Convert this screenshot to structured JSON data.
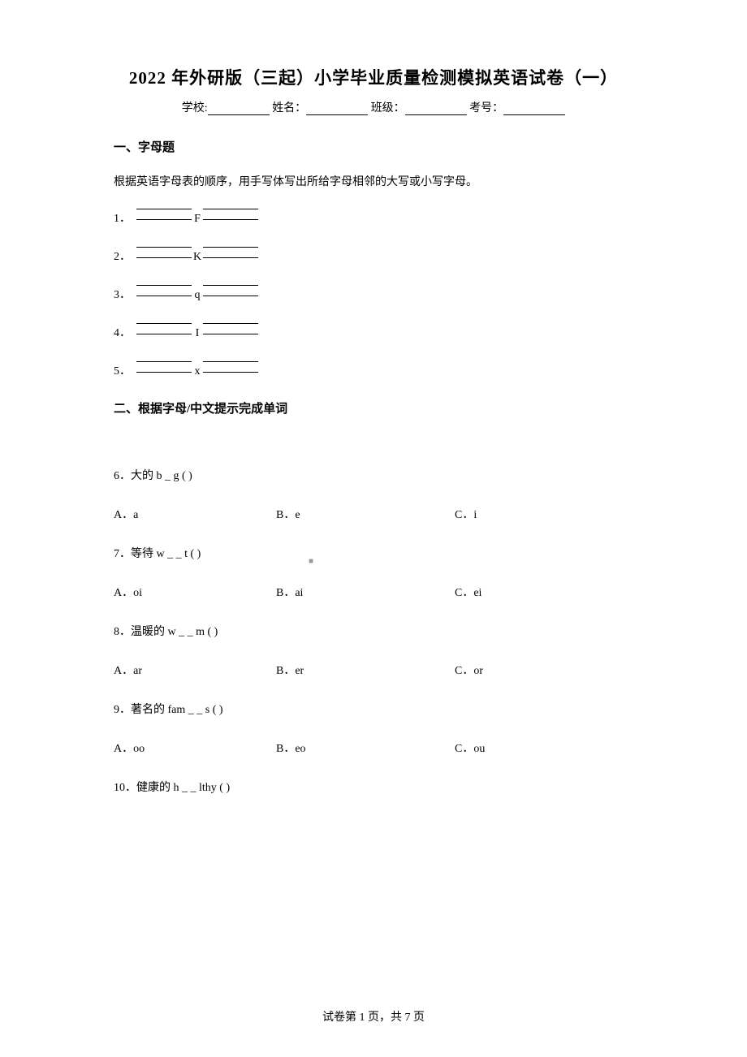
{
  "title": "2022 年外研版（三起）小学毕业质量检测模拟英语试卷（一）",
  "info": {
    "school_label": "学校:",
    "name_label": "姓名：",
    "class_label": "班级：",
    "exam_no_label": "考号："
  },
  "section1": {
    "header": "一、字母题",
    "instruction": "根据英语字母表的顺序，用手写体写出所给字母相邻的大写或小写字母。",
    "items": [
      {
        "num": "1．",
        "letter": "F"
      },
      {
        "num": "2．",
        "letter": "K"
      },
      {
        "num": "3．",
        "letter": "q"
      },
      {
        "num": "4．",
        "letter": "I"
      },
      {
        "num": "5．",
        "letter": "x"
      }
    ]
  },
  "section2": {
    "header": "二、根据字母/中文提示完成单词",
    "questions": [
      {
        "num": "6．",
        "text": "大的    b _ g (           )",
        "a": "A．a",
        "b": "B．e",
        "c": "C．i"
      },
      {
        "num": "7．",
        "text": "等待    w _ _ t (          )",
        "a": "A．oi",
        "b": "B．ai",
        "c": "C．ei"
      },
      {
        "num": "8．",
        "text": "温暖的    w _ _ m (           )",
        "a": "A．ar",
        "b": "B．er",
        "c": "C．or"
      },
      {
        "num": "9．",
        "text": "著名的    fam _ _ s (            )",
        "a": "A．oo",
        "b": "B．eo",
        "c": "C．ou"
      },
      {
        "num": "10．",
        "text": "健康的    h _ _ lthy (           )",
        "a": "",
        "b": "",
        "c": ""
      }
    ]
  },
  "footer": "试卷第 1 页，共 7 页",
  "watermark": "■"
}
